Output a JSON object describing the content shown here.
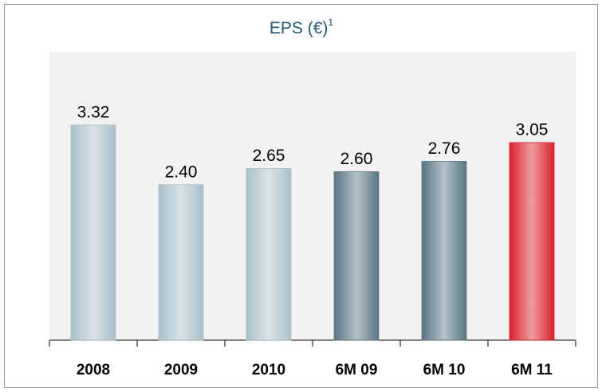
{
  "chart_data": {
    "type": "bar",
    "title": "EPS (€)",
    "title_note": "1",
    "categories": [
      "2008",
      "2009",
      "2010",
      "6M 09",
      "6M 10",
      "6M 11"
    ],
    "values": [
      3.32,
      2.4,
      2.65,
      2.6,
      2.76,
      3.05
    ],
    "value_labels": [
      "3.32",
      "2.40",
      "2.65",
      "2.60",
      "2.76",
      "3.05"
    ],
    "colors": [
      "#a9c0c9",
      "#a9c0c9",
      "#a9c0c9",
      "#587683",
      "#587683",
      "#d9222c"
    ],
    "ylim": [
      0,
      4.45
    ],
    "grid": false
  }
}
